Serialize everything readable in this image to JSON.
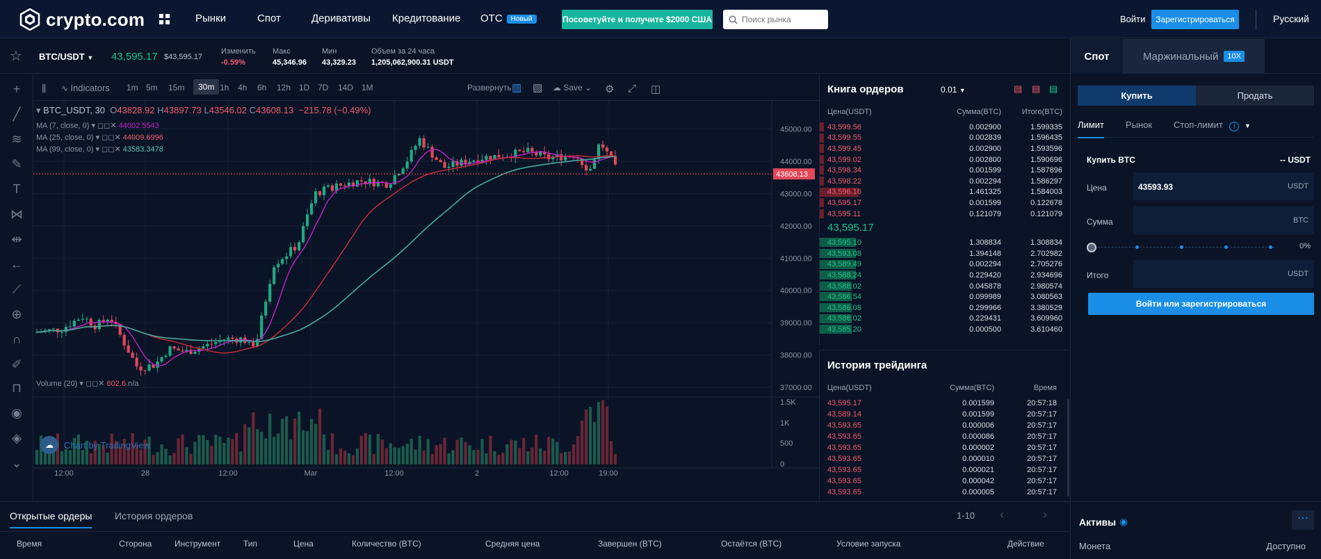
{
  "header": {
    "logo": "crypto.com",
    "nav": [
      "Рынки",
      "Спот",
      "Деривативы",
      "Кредитование",
      "OTC"
    ],
    "otc_badge": "Новый",
    "promo": "Посоветуйте и получите $2000 США",
    "search_placeholder": "Поиск рынка",
    "login": "Войти",
    "register": "Зарегистрироваться",
    "language": "Русский"
  },
  "ticker": {
    "pair": "BTC/USDT",
    "last": "43,595.17",
    "last_usd": "$43,595.17",
    "change_label": "Изменить",
    "change": "-0.59%",
    "high_label": "Макс",
    "high": "45,346.96",
    "low_label": "Мин",
    "low": "43,329.23",
    "vol_label": "Объем за 24 часа",
    "vol": "1,205,062,900.31 USDT"
  },
  "chart_toolbar": {
    "indicators": "Indicators",
    "intervals": [
      "1m",
      "5m",
      "15m",
      "30m",
      "1h",
      "4h",
      "6h",
      "12h",
      "1D",
      "7D",
      "14D",
      "1M"
    ],
    "selected_interval": "30m",
    "expand": "Развернуть",
    "save": "Save"
  },
  "chart_legend": {
    "symbol": "BTC_USDT, 30",
    "o_label": "O",
    "o": "43828.92",
    "h_label": "H",
    "h": "43897.73",
    "l_label": "L",
    "l": "43546.02",
    "c_label": "C",
    "c": "43608.13",
    "chg": "−215.78 (−0.49%)",
    "ma1_label": "MA (7, close, 0)",
    "ma1": "44002.5543",
    "ma2_label": "MA (25, close, 0)",
    "ma2": "44009.6996",
    "ma3_label": "MA (99, close, 0)",
    "ma3": "43583.3478",
    "volume_label": "Volume (20)",
    "volume": "602.6",
    "volume_na": "n/a",
    "watermark": "Chart by TradingView",
    "price_tag": "43608.13"
  },
  "chart_data": {
    "type": "candlestick",
    "y_ticks": [
      "45000.00",
      "44000.00",
      "43000.00",
      "42000.00",
      "41000.00",
      "40000.00",
      "39000.00",
      "38000.00",
      "37000.00"
    ],
    "ylim": [
      36700,
      45700
    ],
    "vol_ticks": [
      "1.5K",
      "1K",
      "500",
      "0"
    ],
    "x_ticks": [
      "12:00",
      "28",
      "12:00",
      "Mar",
      "12:00",
      "2",
      "12:00",
      "19:00"
    ],
    "colors": {
      "up": "#22a884",
      "down": "#e2485a",
      "ma7": "#c320c9",
      "ma25": "#d12b3b",
      "ma99": "#4aa8a0"
    }
  },
  "orderbook": {
    "title": "Книга ордеров",
    "precision": "0.01",
    "headers": [
      "Цена(USDT)",
      "Сумма(BTC)",
      "Итого(BTC)"
    ],
    "asks": [
      [
        "43,599.56",
        "0.002900",
        "1.599335"
      ],
      [
        "43,599.55",
        "0.002839",
        "1.596435"
      ],
      [
        "43,599.45",
        "0.002900",
        "1.593596"
      ],
      [
        "43,599.02",
        "0.002800",
        "1.590696"
      ],
      [
        "43,598.34",
        "0.001599",
        "1.587896"
      ],
      [
        "43,598.22",
        "0.002294",
        "1.586297"
      ],
      [
        "43,596.16",
        "1.461325",
        "1.584003"
      ],
      [
        "43,595.17",
        "0.001599",
        "0.122678"
      ],
      [
        "43,595.11",
        "0.121079",
        "0.121079"
      ]
    ],
    "mid": "43,595.17",
    "bids": [
      [
        "43,595.10",
        "1.308834",
        "1.308834"
      ],
      [
        "43,593.08",
        "1.394148",
        "2.702982"
      ],
      [
        "43,589.49",
        "0.002294",
        "2.705276"
      ],
      [
        "43,588.24",
        "0.229420",
        "2.934696"
      ],
      [
        "43,588.02",
        "0.045878",
        "2.980574"
      ],
      [
        "43,586.54",
        "0.099989",
        "3.080563"
      ],
      [
        "43,586.08",
        "0.299966",
        "3.380529"
      ],
      [
        "43,586.02",
        "0.229431",
        "3.609960"
      ],
      [
        "43,585.20",
        "0.000500",
        "3.610460"
      ]
    ]
  },
  "trades": {
    "title": "История трейдинга",
    "headers": [
      "Цена(USDT)",
      "Сумма(BTC)",
      "Время"
    ],
    "rows": [
      [
        "43,595.17",
        "0.001599",
        "20:57:18",
        "red"
      ],
      [
        "43,589.14",
        "0.001599",
        "20:57:17",
        "red"
      ],
      [
        "43,593.65",
        "0.000006",
        "20:57:17",
        "red"
      ],
      [
        "43,593.65",
        "0.000086",
        "20:57:17",
        "red"
      ],
      [
        "43,593.65",
        "0.000002",
        "20:57:17",
        "red"
      ],
      [
        "43,593.65",
        "0.000010",
        "20:57:17",
        "red"
      ],
      [
        "43,593.65",
        "0.000021",
        "20:57:17",
        "red"
      ],
      [
        "43,593.65",
        "0.000042",
        "20:57:17",
        "red"
      ],
      [
        "43,593.65",
        "0.000005",
        "20:57:17",
        "red"
      ]
    ]
  },
  "trade_panel": {
    "tabs": [
      "Спот",
      "Маржинальный"
    ],
    "margin_badge": "10X",
    "buy": "Купить",
    "sell": "Продать",
    "order_types": [
      "Лимит",
      "Рынок",
      "Стоп-лимит"
    ],
    "buy_title": "Купить BTC",
    "balance": "-- USDT",
    "price_label": "Цена",
    "price_value": "43593.93",
    "price_unit": "USDT",
    "amount_label": "Сумма",
    "amount_unit": "BTC",
    "slider_pct": "0%",
    "total_label": "Итого",
    "total_unit": "USDT",
    "cta": "Войти или зарегистрироваться"
  },
  "bottom": {
    "tabs": [
      "Открытые ордеры",
      "История ордеров"
    ],
    "pager": "1-10",
    "columns": [
      "Время",
      "Сторона",
      "Инструмент",
      "Тип",
      "Цена",
      "Количество (BTC)",
      "Средняя цена",
      "Завершен (BTC)",
      "Остаётся (BTC)",
      "Условие запуска",
      "Действие"
    ]
  },
  "assets": {
    "title": "Активы",
    "col1": "Монета",
    "col2": "Доступно"
  }
}
